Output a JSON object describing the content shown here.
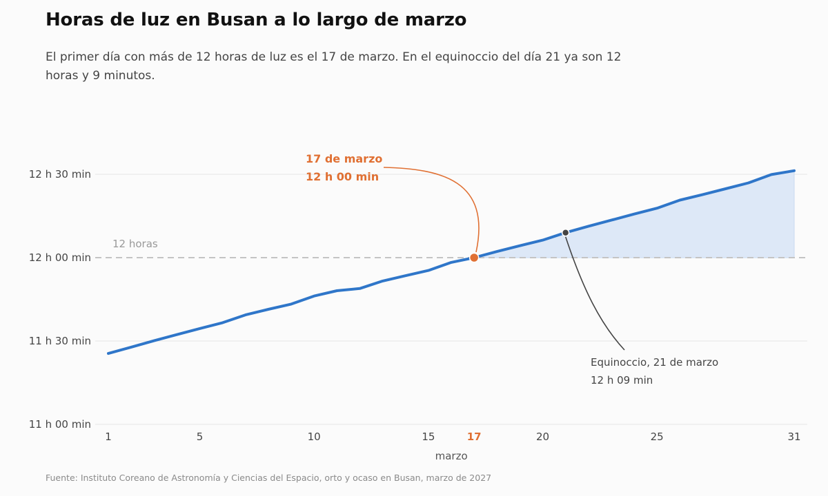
{
  "chart_data": {
    "type": "area",
    "title": "Horas de luz en Busan a lo largo de marzo",
    "subtitle": "El primer día con más de 12 horas de luz es el 17 de marzo. En el equinoccio del día 21 ya son 12 horas y 9 minutos.",
    "source": "Fuente: Instituto Coreano de Astronomía y Ciencias del Espacio, orto y ocaso en Busan, marzo de 2027",
    "xlabel": "marzo",
    "xlim": [
      1,
      31
    ],
    "ylim": [
      660,
      765
    ],
    "x_ticks": [
      {
        "value": 1,
        "label": "1"
      },
      {
        "value": 5,
        "label": "5"
      },
      {
        "value": 10,
        "label": "10"
      },
      {
        "value": 15,
        "label": "15"
      },
      {
        "value": 17,
        "label": "17",
        "highlight": true
      },
      {
        "value": 20,
        "label": "20"
      },
      {
        "value": 25,
        "label": "25"
      },
      {
        "value": 31,
        "label": "31"
      }
    ],
    "y_ticks": [
      {
        "value": 660,
        "label": "11 h 00 min"
      },
      {
        "value": 690,
        "label": "11 h 30 min"
      },
      {
        "value": 720,
        "label": "12 h 00 min"
      },
      {
        "value": 750,
        "label": "12 h 30 min"
      }
    ],
    "grid": true,
    "reference_line": {
      "value": 720,
      "label": "12 horas"
    },
    "series": [
      {
        "x": [
          1,
          2,
          3,
          4,
          5,
          6,
          7,
          8,
          9,
          10,
          11,
          12,
          13,
          14,
          15,
          16,
          17,
          18,
          19,
          20,
          21,
          22,
          23,
          24,
          25,
          26,
          27,
          28,
          29,
          30,
          31
        ],
        "values": [
          685.5,
          687.8,
          690.1,
          692.3,
          694.5,
          696.6,
          699.4,
          701.4,
          703.3,
          706.2,
          708.1,
          708.9,
          711.6,
          713.5,
          715.4,
          718.3,
          720.0,
          722.2,
          724.3,
          726.3,
          729.0,
          731.3,
          733.5,
          735.7,
          737.8,
          740.7,
          742.7,
          744.8,
          746.9,
          749.9,
          751.3
        ],
        "color": "#2f76c9",
        "fill": "#dde8f7"
      }
    ],
    "annotations": [
      {
        "x": 17,
        "y": 720,
        "lines": [
          "17 de marzo",
          "12 h 00 min"
        ],
        "color": "#e07033"
      },
      {
        "x": 21,
        "y": 729,
        "lines": [
          "Equinoccio, 21 de marzo",
          "12 h 09 min"
        ],
        "color": "#444444"
      }
    ]
  }
}
